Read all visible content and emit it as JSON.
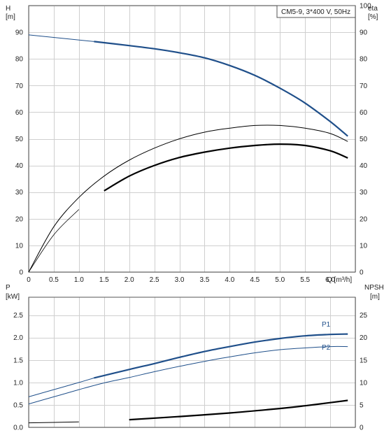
{
  "chart_data": [
    {
      "type": "line",
      "title": "CM5-9, 3*400 V, 50Hz",
      "xlabel": "Q [m³/h]",
      "ylabel_left_name": "H",
      "ylabel_left_unit": "[m]",
      "ylabel_right_name": "eta",
      "ylabel_right_unit": "[%]",
      "xlim": [
        0,
        6.5
      ],
      "ylim_left": [
        0,
        100
      ],
      "ylim_right": [
        0,
        100
      ],
      "x_ticks": [
        "0",
        "0.5",
        "1.0",
        "1.5",
        "2.0",
        "2.5",
        "3.0",
        "3.5",
        "4.0",
        "4.5",
        "5.0",
        "5.5",
        "6.0"
      ],
      "y_ticks_left": [
        "0",
        "10",
        "20",
        "30",
        "40",
        "50",
        "60",
        "70",
        "80",
        "90"
      ],
      "y_ticks_right": [
        "0",
        "10",
        "20",
        "30",
        "40",
        "50",
        "60",
        "70",
        "80",
        "90",
        "100"
      ],
      "grid": true,
      "series": [
        {
          "color": "#1f4f8a",
          "axis": "left",
          "x": [
            0,
            1.3,
            2.0,
            2.5,
            3.0,
            3.5,
            4.0,
            4.5,
            5.0,
            5.5,
            6.0,
            6.35
          ],
          "y": [
            89,
            86.5,
            85,
            83.8,
            82.3,
            80.4,
            77.5,
            73.8,
            69,
            63.4,
            56.5,
            51
          ]
        },
        {
          "color": "#000000",
          "axis": "right",
          "x": [
            0,
            0.5,
            1.0,
            1.5,
            2.0,
            2.5,
            3.0,
            3.5,
            4.0,
            4.5,
            5.0,
            5.5,
            6.0,
            6.35
          ],
          "y": [
            0,
            17,
            28,
            36,
            42,
            46.5,
            50,
            52.5,
            54,
            55,
            55,
            54,
            52,
            49
          ]
        },
        {
          "color": "#000000",
          "axis": "right",
          "x": [
            0,
            0.5,
            1.0,
            1.5,
            2.0,
            2.5,
            3.0,
            3.5,
            4.0,
            4.5,
            5.0,
            5.5,
            6.0,
            6.35
          ],
          "y": [
            0,
            14,
            23.5,
            30.5,
            36,
            40,
            43,
            45,
            46.5,
            47.5,
            48,
            47.5,
            45.5,
            42.8
          ]
        }
      ]
    },
    {
      "type": "line",
      "xlabel": "",
      "ylabel_left_name": "P",
      "ylabel_left_unit": "[kW]",
      "ylabel_right_name": "NPSH",
      "ylabel_right_unit": "[m]",
      "xlim": [
        0,
        6.5
      ],
      "ylim_left": [
        0,
        2.9
      ],
      "ylim_right": [
        0,
        29
      ],
      "y_ticks_left": [
        "0.0",
        "0.5",
        "1.0",
        "1.5",
        "2.0",
        "2.5"
      ],
      "y_ticks_right": [
        "0",
        "5",
        "10",
        "15",
        "20",
        "25"
      ],
      "grid": true,
      "series": [
        {
          "name": "P1",
          "color": "#1f4f8a",
          "axis": "left",
          "x": [
            0,
            0.5,
            1.0,
            1.3,
            2.0,
            2.5,
            3.0,
            3.5,
            4.0,
            4.5,
            5.0,
            5.5,
            6.0,
            6.35
          ],
          "y": [
            0.68,
            0.84,
            1.0,
            1.1,
            1.29,
            1.42,
            1.56,
            1.69,
            1.8,
            1.9,
            1.98,
            2.04,
            2.07,
            2.08
          ]
        },
        {
          "name": "P2",
          "color": "#1f4f8a",
          "axis": "left",
          "x": [
            0,
            0.5,
            1.0,
            1.5,
            2.0,
            2.5,
            3.0,
            3.5,
            4.0,
            4.5,
            5.0,
            5.5,
            6.0,
            6.35
          ],
          "y": [
            0.52,
            0.68,
            0.84,
            0.99,
            1.11,
            1.24,
            1.36,
            1.47,
            1.57,
            1.66,
            1.73,
            1.77,
            1.8,
            1.8
          ]
        },
        {
          "color": "#000000",
          "axis": "right",
          "x": [
            0,
            1.0,
            2.0,
            3.0,
            4.0,
            5.0,
            5.5,
            6.0,
            6.35
          ],
          "y": [
            1.0,
            1.2,
            1.7,
            2.4,
            3.2,
            4.2,
            4.8,
            5.5,
            6.0
          ]
        }
      ]
    }
  ]
}
